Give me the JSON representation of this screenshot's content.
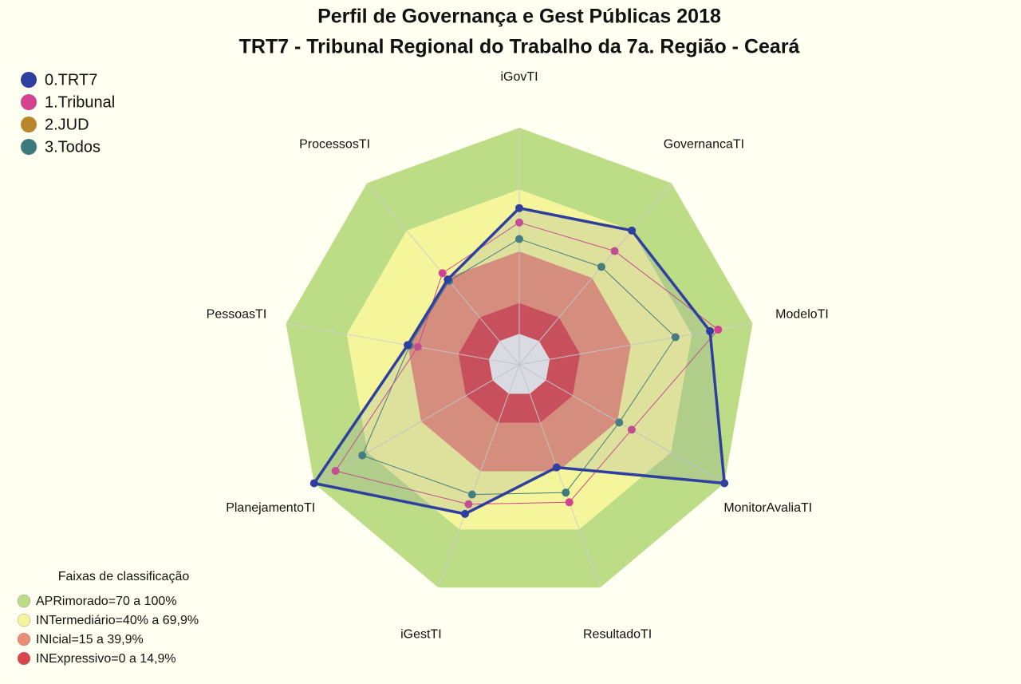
{
  "chart_data": {
    "type": "radar",
    "title": "Perfil de Governança e Gest Públicas 2018",
    "subtitle": "TRT7 - Tribunal Regional do Trabalho da 7a. Região - Ceará",
    "categories": [
      "iGovTI",
      "GovernancaTI",
      "ModeloTI",
      "MonitorAvaliaTI",
      "ResultadoTI",
      "iGestTI",
      "PlanejamentoTI",
      "PessoasTI",
      "ProcessosTI"
    ],
    "rlim": [
      -15,
      100
    ],
    "legend": "top-left",
    "series": [
      {
        "name": "0.TRT7",
        "color": "#2f3f9f",
        "values": [
          61,
          70,
          79,
          100,
          38,
          62,
          100,
          40,
          39
        ]
      },
      {
        "name": "1.Tribunal",
        "color": "#d4418e",
        "values": [
          54,
          57,
          83,
          48,
          56,
          57,
          88,
          35,
          43
        ]
      },
      {
        "name": "2.JUD",
        "color": "#b8862b",
        "values": [
          null,
          null,
          null,
          null,
          null,
          null,
          null,
          null,
          null
        ]
      },
      {
        "name": "3.Todos",
        "color": "#3b7b7b",
        "values": [
          46,
          47,
          62,
          41,
          51,
          52,
          73,
          39,
          38
        ]
      }
    ],
    "bands_title": "Faixas de classificação",
    "bands": [
      {
        "label": "APRimorado=70 a 100%",
        "color": "#bcdc85",
        "from": 70,
        "to": 100
      },
      {
        "label": "INTermediário=40% a 69,9%",
        "color": "#f5f59b",
        "from": 40,
        "to": 70
      },
      {
        "label": "INIcial=15 a 39,9%",
        "color": "#e98e76",
        "from": 15,
        "to": 40
      },
      {
        "label": "INExpressivo=0 a 14,9%",
        "color": "#d9444d",
        "from": 0,
        "to": 15
      }
    ]
  }
}
